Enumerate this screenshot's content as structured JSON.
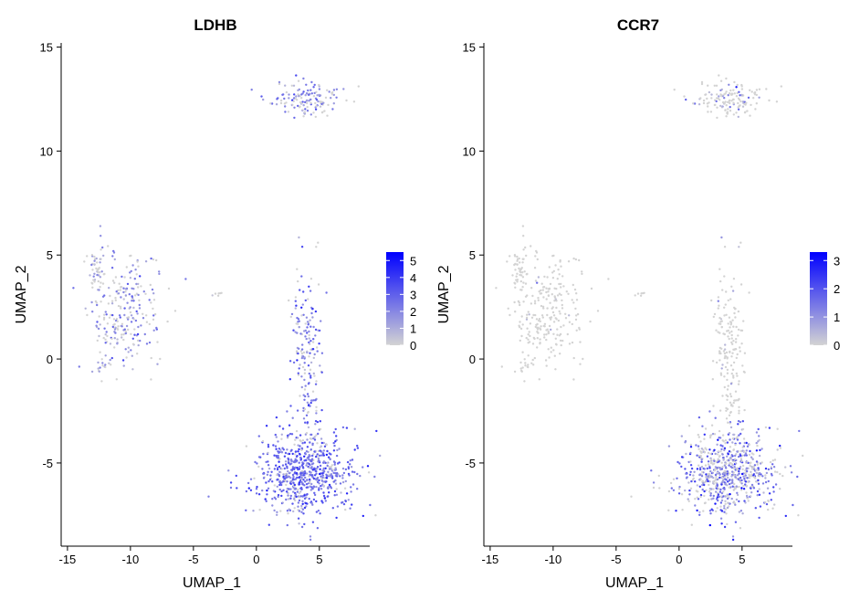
{
  "chart_data": [
    {
      "type": "scatter",
      "title": "LDHB",
      "xlabel": "UMAP_1",
      "ylabel": "UMAP_2",
      "xlim": [
        -15.5,
        9
      ],
      "ylim": [
        -9,
        15.2
      ],
      "x_ticks": [
        -15,
        -10,
        -5,
        0,
        5
      ],
      "x_tick_labels": [
        "-15",
        "-10",
        "-5",
        "0",
        "5"
      ],
      "y_ticks": [
        -5,
        0,
        5,
        10,
        15
      ],
      "y_tick_labels": [
        "-5",
        "0",
        "5",
        "10",
        "15"
      ],
      "grid": false,
      "legend_position": "right",
      "colorbar": {
        "min": 0,
        "max": 5.5,
        "ticks": [
          0,
          1,
          2,
          3,
          4,
          5
        ],
        "tick_labels": [
          "0",
          "1",
          "2",
          "3",
          "4",
          "5"
        ],
        "low_color": "#d3d3d3",
        "high_color": "#0000ff"
      },
      "clusters": [
        {
          "cx": 4.0,
          "cy": 12.5,
          "sx": 1.3,
          "sy": 0.45,
          "n": 140,
          "mean_expr": 2.0
        },
        {
          "cx": -10.5,
          "cy": 2.2,
          "sx": 1.5,
          "sy": 1.4,
          "n": 240,
          "mean_expr": 1.9
        },
        {
          "cx": -12.7,
          "cy": 4.3,
          "sx": 0.3,
          "sy": 0.6,
          "n": 45,
          "mean_expr": 1.3
        },
        {
          "cx": -12.5,
          "cy": -0.3,
          "sx": 0.35,
          "sy": 0.25,
          "n": 12,
          "mean_expr": 1.5
        },
        {
          "cx": -3.0,
          "cy": 3.1,
          "sx": 0.15,
          "sy": 0.1,
          "n": 6,
          "mean_expr": 1.2
        },
        {
          "cx": 4.0,
          "cy": 0.5,
          "sx": 0.6,
          "sy": 2.0,
          "n": 170,
          "mean_expr": 2.2
        },
        {
          "cx": 3.9,
          "cy": -5.5,
          "sx": 1.9,
          "sy": 1.0,
          "n": 720,
          "mean_expr": 2.7
        }
      ]
    },
    {
      "type": "scatter",
      "title": "CCR7",
      "xlabel": "UMAP_1",
      "ylabel": "UMAP_2",
      "xlim": [
        -15.5,
        9
      ],
      "ylim": [
        -9,
        15.2
      ],
      "x_ticks": [
        -15,
        -10,
        -5,
        0,
        5
      ],
      "x_tick_labels": [
        "-15",
        "-10",
        "-5",
        "0",
        "5"
      ],
      "y_ticks": [
        -5,
        0,
        5,
        10,
        15
      ],
      "y_tick_labels": [
        "-5",
        "0",
        "5",
        "10",
        "15"
      ],
      "grid": false,
      "legend_position": "right",
      "colorbar": {
        "min": 0,
        "max": 3.3,
        "ticks": [
          0,
          1,
          2,
          3
        ],
        "tick_labels": [
          "0",
          "1",
          "2",
          "3"
        ],
        "low_color": "#d3d3d3",
        "high_color": "#0000ff"
      },
      "clusters": [
        {
          "cx": 4.0,
          "cy": 12.5,
          "sx": 1.3,
          "sy": 0.45,
          "n": 140,
          "mean_expr": 0.6
        },
        {
          "cx": -10.5,
          "cy": 2.2,
          "sx": 1.5,
          "sy": 1.4,
          "n": 240,
          "mean_expr": 0.1
        },
        {
          "cx": -12.7,
          "cy": 4.3,
          "sx": 0.3,
          "sy": 0.6,
          "n": 45,
          "mean_expr": 0.05
        },
        {
          "cx": -12.5,
          "cy": -0.3,
          "sx": 0.35,
          "sy": 0.25,
          "n": 12,
          "mean_expr": 0.05
        },
        {
          "cx": -3.0,
          "cy": 3.1,
          "sx": 0.15,
          "sy": 0.1,
          "n": 6,
          "mean_expr": 0.05
        },
        {
          "cx": 4.0,
          "cy": 0.5,
          "sx": 0.6,
          "sy": 2.0,
          "n": 170,
          "mean_expr": 0.2
        },
        {
          "cx": 3.9,
          "cy": -5.5,
          "sx": 1.9,
          "sy": 1.0,
          "n": 720,
          "mean_expr": 1.3
        }
      ]
    }
  ]
}
